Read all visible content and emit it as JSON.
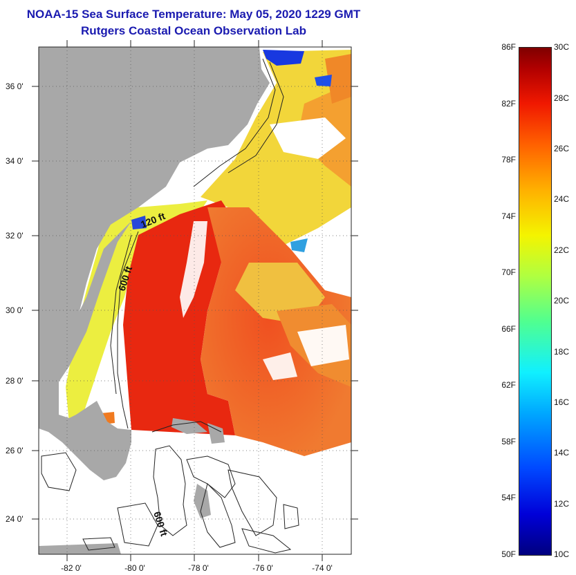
{
  "title_line1": "NOAA-15 Sea Surface Temperature:  May 05, 2020 1229 GMT",
  "title_line2": "Rutgers Coastal Ocean Observation Lab",
  "lat_ticks": [
    "36 0'",
    "34 0'",
    "32 0'",
    "30 0'",
    "28 0'",
    "26 0'",
    "24 0'"
  ],
  "lon_ticks": [
    "-82 0'",
    "-80 0'",
    "-78 0'",
    "-76 0'",
    "-74 0'"
  ],
  "contour_labels": [
    "120 ft",
    "600 ft",
    "600 ft"
  ],
  "colorbar": {
    "fahrenheit_ticks": [
      "86F",
      "82F",
      "78F",
      "74F",
      "70F",
      "66F",
      "62F",
      "58F",
      "54F",
      "50F"
    ],
    "celsius_ticks": [
      "30C",
      "28C",
      "26C",
      "24C",
      "22C",
      "20C",
      "18C",
      "16C",
      "14C",
      "12C",
      "10C"
    ]
  },
  "colors": {
    "land": "#a8a8a8",
    "title": "#1a1ab0",
    "warm_sst": "#f03010",
    "cool_sst": "#f0e030"
  }
}
